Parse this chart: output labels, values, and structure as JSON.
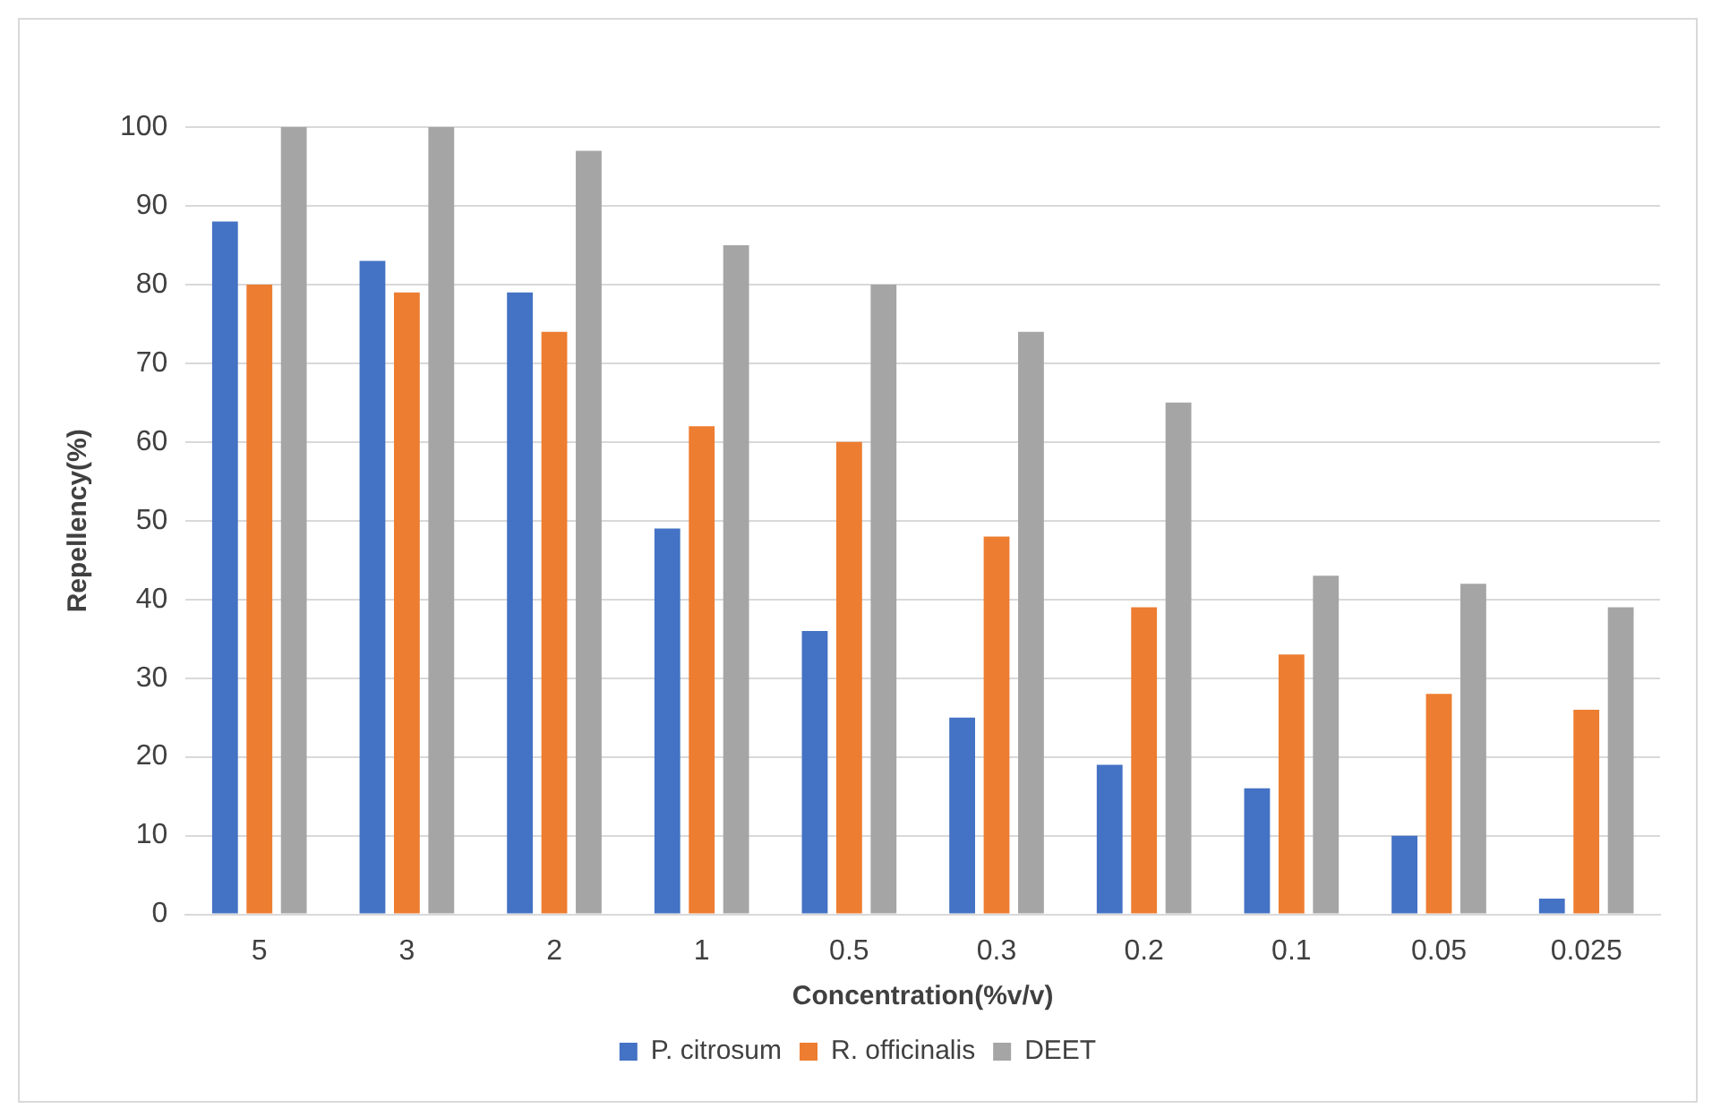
{
  "chart_data": {
    "type": "bar",
    "xlabel": "Concentration(%v/v)",
    "ylabel": "Repellency(%)",
    "categories": [
      "5",
      "3",
      "2",
      "1",
      "0.5",
      "0.3",
      "0.2",
      "0.1",
      "0.05",
      "0.025"
    ],
    "series": [
      {
        "name": "P. citrosum",
        "color": "#4472c4",
        "values": [
          88,
          83,
          79,
          49,
          36,
          25,
          19,
          16,
          10,
          2
        ]
      },
      {
        "name": "R. officinalis",
        "color": "#ed7d31",
        "values": [
          80,
          79,
          74,
          62,
          60,
          48,
          39,
          33,
          28,
          26
        ]
      },
      {
        "name": "DEET",
        "color": "#a5a5a5",
        "values": [
          100,
          100,
          97,
          85,
          80,
          74,
          65,
          43,
          42,
          39
        ]
      }
    ],
    "ylim": [
      0,
      100
    ],
    "yticks": [
      0,
      10,
      20,
      30,
      40,
      50,
      60,
      70,
      80,
      90,
      100
    ],
    "grid": "y",
    "legend": "bottom"
  }
}
